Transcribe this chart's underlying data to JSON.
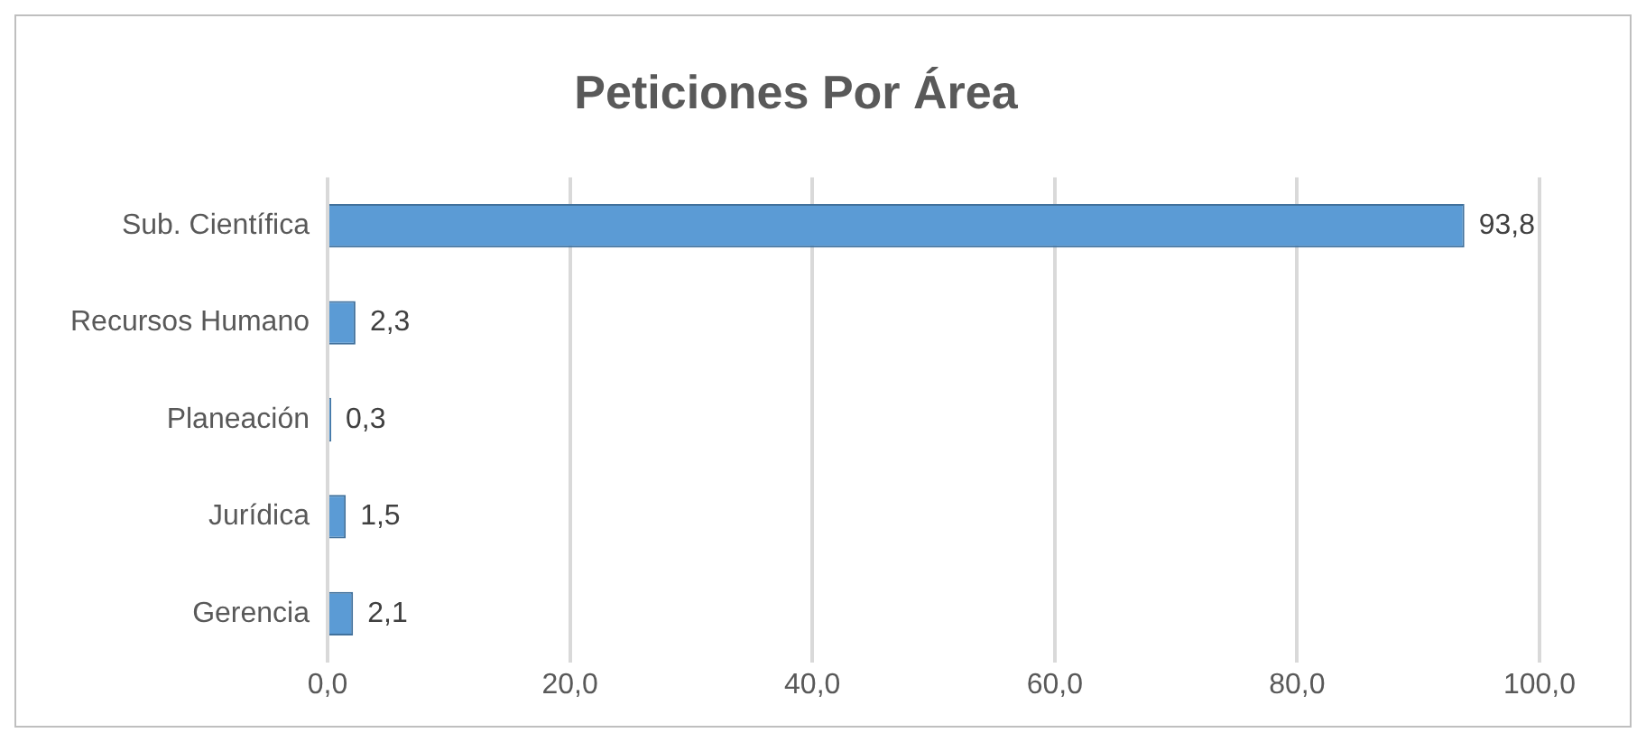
{
  "chart_data": {
    "type": "bar",
    "title": "Peticiones Por Área",
    "orientation": "horizontal",
    "categories": [
      "Sub. Científica",
      "Recursos Humano",
      "Planeación",
      "Jurídica",
      "Gerencia"
    ],
    "values": [
      93.8,
      2.3,
      0.3,
      1.5,
      2.1
    ],
    "value_labels": [
      "93,8",
      "2,3",
      "0,3",
      "1,5",
      "2,1"
    ],
    "color": "#5b9bd5",
    "xlim": [
      0,
      100
    ],
    "xticks": [
      {
        "value": 0,
        "label": "0,0"
      },
      {
        "value": 20,
        "label": "20,0"
      },
      {
        "value": 40,
        "label": "40,0"
      },
      {
        "value": 60,
        "label": "60,0"
      },
      {
        "value": 80,
        "label": "80,0"
      },
      {
        "value": 100,
        "label": "100,0"
      }
    ],
    "grid": "x",
    "legend": false
  }
}
